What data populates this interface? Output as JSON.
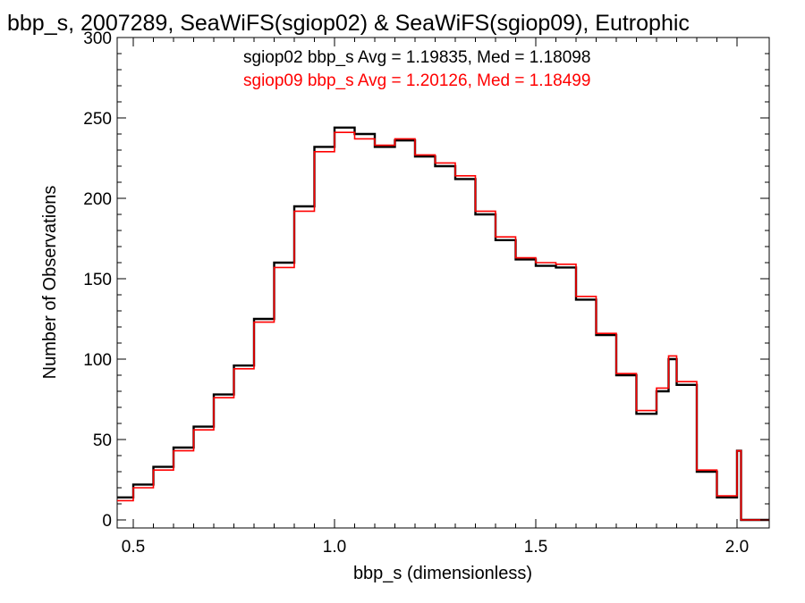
{
  "chart_data": {
    "type": "line",
    "title": "bbp_s, 2007289, SeaWiFS(sgiop02) & SeaWiFS(sgiop09), Eutrophic",
    "xlabel": "bbp_s (dimensionless)",
    "ylabel": "Number of Observations",
    "xlim": [
      0.46,
      2.08
    ],
    "ylim": [
      -5,
      300
    ],
    "x_ticks": [
      0.5,
      1.0,
      1.5,
      2.0
    ],
    "x_tick_labels": [
      "0.5",
      "1.0",
      "1.5",
      "2.0"
    ],
    "y_ticks": [
      0,
      50,
      100,
      150,
      200,
      250,
      300
    ],
    "y_tick_labels": [
      "0",
      "50",
      "100",
      "150",
      "200",
      "250",
      "300"
    ],
    "grid": false,
    "step_style": "histogram",
    "annotations": [
      {
        "text": "sgiop02 bbp_s Avg = 1.19835, Med = 1.18098",
        "color": "#000000"
      },
      {
        "text": "sgiop09 bbp_s Avg = 1.20126, Med = 1.18499",
        "color": "#ff0000"
      }
    ],
    "series": [
      {
        "color": "#000000",
        "x": [
          0.46,
          0.5,
          0.55,
          0.6,
          0.65,
          0.7,
          0.75,
          0.8,
          0.85,
          0.9,
          0.95,
          1.0,
          1.05,
          1.1,
          1.15,
          1.2,
          1.25,
          1.3,
          1.35,
          1.4,
          1.45,
          1.5,
          1.55,
          1.6,
          1.65,
          1.7,
          1.75,
          1.8,
          1.83,
          1.85,
          1.9,
          1.95,
          2.0,
          2.01,
          2.08
        ],
        "values": [
          14,
          22,
          33,
          45,
          58,
          78,
          96,
          125,
          160,
          195,
          232,
          244,
          240,
          232,
          236,
          226,
          220,
          212,
          190,
          174,
          162,
          158,
          157,
          137,
          115,
          90,
          66,
          80,
          100,
          84,
          30,
          14,
          43,
          0,
          0
        ]
      },
      {
        "color": "#ff0000",
        "x": [
          0.46,
          0.5,
          0.55,
          0.6,
          0.65,
          0.7,
          0.75,
          0.8,
          0.85,
          0.9,
          0.95,
          1.0,
          1.05,
          1.1,
          1.15,
          1.2,
          1.25,
          1.3,
          1.35,
          1.4,
          1.45,
          1.5,
          1.55,
          1.6,
          1.65,
          1.7,
          1.75,
          1.8,
          1.83,
          1.85,
          1.9,
          1.95,
          2.0,
          2.01,
          2.08
        ],
        "values": [
          12,
          20,
          31,
          43,
          56,
          76,
          94,
          123,
          157,
          192,
          229,
          241,
          237,
          233,
          237,
          227,
          222,
          214,
          192,
          176,
          163,
          160,
          159,
          139,
          116,
          91,
          68,
          82,
          102,
          86,
          31,
          15,
          43,
          0,
          0
        ]
      }
    ]
  }
}
